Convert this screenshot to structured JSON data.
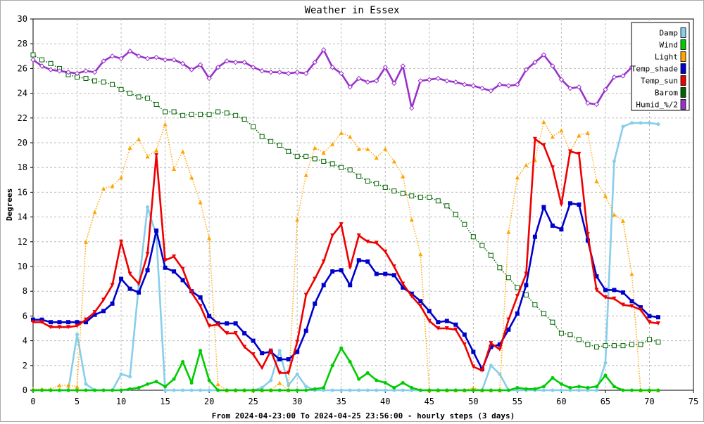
{
  "chart_data": {
    "type": "line",
    "title": "Weather in Essex",
    "ylabel": "Degrees",
    "xlabel": "From 2024-04-23:00 To 2024-04-25 23:56:00 - hourly steps (3 days)",
    "xlim": [
      0,
      75
    ],
    "ylim": [
      0,
      30
    ],
    "x_ticks": [
      0,
      5,
      10,
      15,
      20,
      25,
      30,
      35,
      40,
      45,
      50,
      55,
      60,
      65,
      70,
      75
    ],
    "y_ticks": [
      0,
      2,
      4,
      6,
      8,
      10,
      12,
      14,
      16,
      18,
      20,
      22,
      24,
      26,
      28,
      30
    ],
    "grid": true,
    "legend_position": "top-right",
    "series": [
      {
        "name": "Damp",
        "color": "#87ceeb",
        "style": "solid",
        "marker": "circle",
        "values": [
          0,
          0,
          0,
          0,
          0,
          4.5,
          0.5,
          0,
          0,
          0,
          1.3,
          1.1,
          8.5,
          14.8,
          12.5,
          0,
          0,
          0,
          0,
          0,
          0,
          0,
          0,
          0,
          0,
          0,
          0.2,
          0.8,
          3.2,
          0.4,
          1.3,
          0.3,
          0,
          0,
          0,
          0,
          0,
          0,
          0,
          0,
          0,
          0,
          0,
          0,
          0,
          0,
          0,
          0,
          0,
          0,
          0,
          0,
          2,
          1.3,
          0,
          0,
          0,
          0,
          0,
          0,
          0,
          0,
          0,
          0,
          0,
          2.2,
          18.5,
          21.3,
          21.6,
          21.6,
          21.6,
          21.5
        ]
      },
      {
        "name": "Wind",
        "color": "#00cc00",
        "style": "solid",
        "marker": "circle",
        "values": [
          0,
          0,
          0,
          0,
          0,
          0,
          0,
          0,
          0,
          0,
          0,
          0.1,
          0.2,
          0.5,
          0.7,
          0.3,
          0.9,
          2.3,
          0.6,
          3.2,
          0.8,
          0,
          0,
          0,
          0,
          0,
          0,
          0,
          0,
          0,
          0,
          0,
          0.1,
          0.2,
          2,
          3.4,
          2.3,
          0.9,
          1.4,
          0.8,
          0.6,
          0.2,
          0.6,
          0.2,
          0,
          0,
          0,
          0,
          0,
          0,
          0,
          0,
          0,
          0,
          0,
          0.2,
          0.1,
          0.1,
          0.3,
          1,
          0.5,
          0.2,
          0.3,
          0.2,
          0.3,
          1.2,
          0.3,
          0,
          0,
          0,
          0,
          0
        ]
      },
      {
        "name": "Light",
        "color": "#ffa500",
        "style": "dotted",
        "marker": "triangle-up",
        "values": [
          0.1,
          0.1,
          0.1,
          0.4,
          0.4,
          0.3,
          12,
          14.4,
          16.3,
          16.5,
          17.2,
          19.6,
          20.3,
          18.9,
          19.4,
          21.5,
          17.9,
          19.3,
          17.2,
          15.2,
          12.3,
          0.5,
          0,
          0,
          0,
          0,
          0,
          0,
          0.6,
          0,
          13.8,
          17.4,
          19.6,
          19.2,
          19.9,
          20.8,
          20.5,
          19.5,
          19.5,
          18.8,
          19.5,
          18.5,
          17.3,
          13.8,
          11,
          0,
          0,
          0,
          0,
          0,
          0.2,
          0,
          0,
          0,
          12.8,
          17.2,
          18.2,
          18.6,
          21.7,
          20.5,
          21,
          19.3,
          20.6,
          20.8,
          16.9,
          15.7,
          14.2,
          13.7,
          9.4,
          0,
          0,
          0
        ]
      },
      {
        "name": "Temp_shade",
        "color": "#0000cc",
        "style": "solid",
        "marker": "square",
        "values": [
          5.7,
          5.7,
          5.5,
          5.5,
          5.5,
          5.5,
          5.5,
          6.1,
          6.4,
          7,
          9,
          8.2,
          7.9,
          9.7,
          12.9,
          9.9,
          9.6,
          8.9,
          8,
          7.5,
          6,
          5.4,
          5.4,
          5.4,
          4.6,
          4,
          3,
          3.1,
          2.5,
          2.5,
          3.1,
          4.8,
          7,
          8.5,
          9.6,
          9.7,
          8.5,
          10.5,
          10.4,
          9.4,
          9.4,
          9.3,
          8.3,
          7.8,
          7.2,
          6.4,
          5.5,
          5.6,
          5.3,
          4.5,
          3.1,
          1.7,
          3.5,
          3.7,
          4.9,
          6.2,
          8.5,
          12.4,
          14.8,
          13.3,
          13,
          15.1,
          15,
          12.1,
          9.2,
          8.1,
          8.1,
          7.9,
          7.2,
          6.7,
          6,
          5.9
        ]
      },
      {
        "name": "Temp_sun",
        "color": "#ee0000",
        "style": "solid",
        "marker": "triangle-down",
        "values": [
          5.5,
          5.5,
          5.1,
          5.1,
          5.1,
          5.2,
          5.7,
          6.3,
          7.3,
          8.5,
          12,
          9.4,
          8.6,
          11,
          19,
          10.5,
          10.8,
          9.8,
          7.9,
          6.8,
          5.2,
          5.3,
          4.6,
          4.6,
          3.5,
          2.9,
          1.8,
          3.2,
          1.4,
          1.4,
          3.9,
          7.7,
          9,
          10.4,
          12.5,
          13.4,
          9.9,
          12.5,
          12,
          11.9,
          11.2,
          10,
          8.6,
          7.6,
          6.8,
          5.6,
          5,
          5,
          4.9,
          3.7,
          1.9,
          1.6,
          3.8,
          3.3,
          5.7,
          7.6,
          9.4,
          20.3,
          19.8,
          18,
          15,
          19.3,
          19.1,
          12.6,
          8.1,
          7.5,
          7.4,
          6.9,
          6.8,
          6.5,
          5.5,
          5.4
        ]
      },
      {
        "name": "Barom",
        "color": "#006400",
        "style": "dotted",
        "marker": "hollow-square",
        "values": [
          27.1,
          26.7,
          26.4,
          26,
          25.5,
          25.3,
          25.2,
          25,
          24.9,
          24.7,
          24.3,
          24,
          23.7,
          23.6,
          23.1,
          22.5,
          22.5,
          22.2,
          22.3,
          22.3,
          22.3,
          22.5,
          22.4,
          22.2,
          21.9,
          21.3,
          20.5,
          20.1,
          19.8,
          19.3,
          18.9,
          18.9,
          18.7,
          18.5,
          18.3,
          18,
          17.8,
          17.3,
          16.9,
          16.7,
          16.4,
          16.1,
          15.9,
          15.7,
          15.6,
          15.6,
          15.3,
          14.9,
          14.2,
          13.4,
          12.4,
          11.7,
          10.9,
          9.9,
          9.1,
          8.3,
          7.7,
          6.9,
          6.2,
          5.5,
          4.6,
          4.5,
          4.1,
          3.7,
          3.5,
          3.6,
          3.6,
          3.6,
          3.7,
          3.7,
          4.1,
          3.9
        ]
      },
      {
        "name": "Humid_%/2",
        "color": "#9932cc",
        "style": "solid",
        "marker": "hollow-diamond",
        "values": [
          26.7,
          26.2,
          25.9,
          25.8,
          25.7,
          25.6,
          25.8,
          25.7,
          26.6,
          27,
          26.8,
          27.4,
          27,
          26.8,
          26.9,
          26.7,
          26.7,
          26.4,
          25.9,
          26.3,
          25.2,
          26.1,
          26.6,
          26.5,
          26.5,
          26.1,
          25.8,
          25.7,
          25.7,
          25.6,
          25.7,
          25.6,
          26.5,
          27.5,
          26.1,
          25.6,
          24.5,
          25.2,
          24.9,
          25,
          26.1,
          24.8,
          26.2,
          22.8,
          25,
          25.1,
          25.2,
          25,
          24.9,
          24.7,
          24.6,
          24.4,
          24.2,
          24.7,
          24.6,
          24.7,
          25.9,
          26.5,
          27.1,
          26.2,
          25.1,
          24.4,
          24.5,
          23.2,
          23.1,
          24.3,
          25.3,
          25.4,
          26.1,
          26.7,
          26.7,
          26.5
        ]
      }
    ]
  }
}
